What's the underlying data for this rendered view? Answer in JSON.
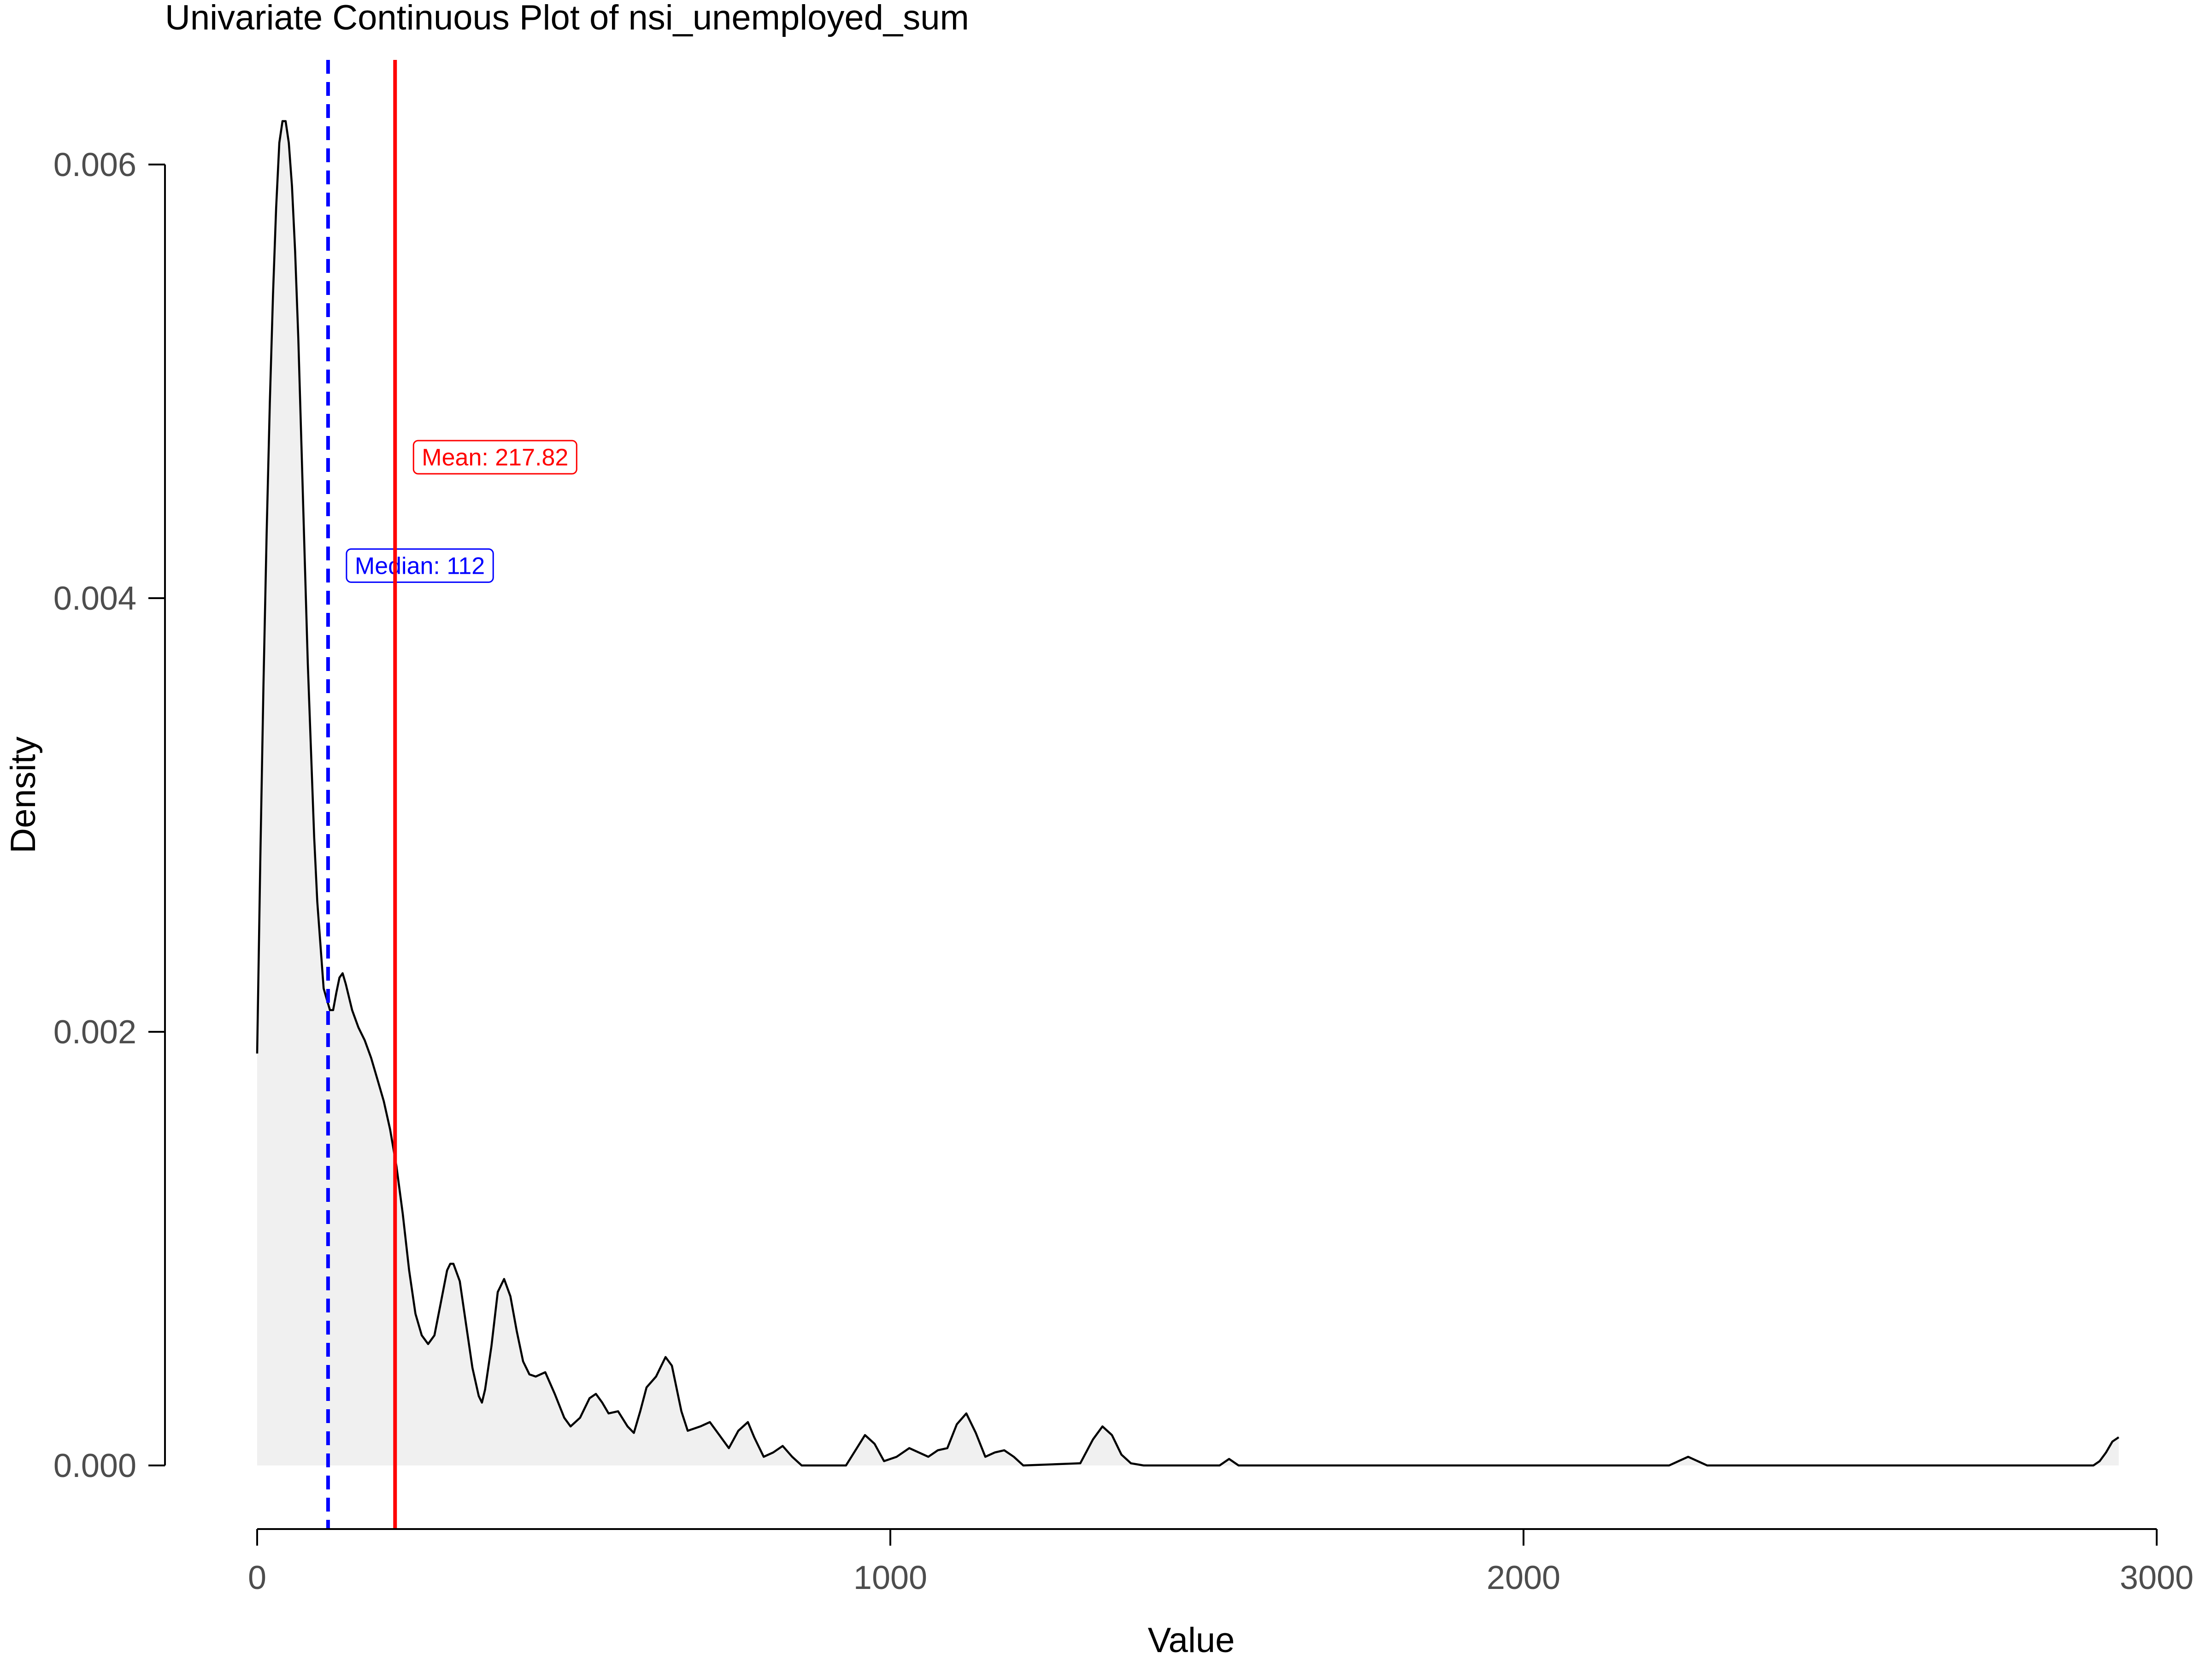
{
  "chart_data": {
    "type": "area",
    "title": "Univariate Continuous Plot of nsi_unemployed_sum",
    "xlabel": "Value",
    "ylabel": "Density",
    "xlim": [
      0,
      3000
    ],
    "ylim": [
      0,
      0.006
    ],
    "x_ticks": [
      0,
      1000,
      2000,
      3000
    ],
    "x_tick_labels": [
      "0",
      "1000",
      "2000",
      "3000"
    ],
    "y_ticks": [
      0,
      0.002,
      0.004,
      0.006
    ],
    "y_tick_labels": [
      "0.000",
      "0.002",
      "0.004",
      "0.006"
    ],
    "grid": false,
    "series": [
      {
        "values": [
          [
            0,
            0.0019
          ],
          [
            5,
            0.0028
          ],
          [
            10,
            0.0036
          ],
          [
            15,
            0.0043
          ],
          [
            20,
            0.0049
          ],
          [
            25,
            0.0054
          ],
          [
            30,
            0.0058
          ],
          [
            35,
            0.0061
          ],
          [
            40,
            0.0062
          ],
          [
            45,
            0.0062
          ],
          [
            50,
            0.0061
          ],
          [
            55,
            0.0059
          ],
          [
            60,
            0.0056
          ],
          [
            65,
            0.0052
          ],
          [
            70,
            0.0047
          ],
          [
            75,
            0.0042
          ],
          [
            80,
            0.0037
          ],
          [
            85,
            0.0033
          ],
          [
            90,
            0.0029
          ],
          [
            95,
            0.0026
          ],
          [
            100,
            0.0024
          ],
          [
            105,
            0.0022
          ],
          [
            110,
            0.00215
          ],
          [
            115,
            0.0021
          ],
          [
            120,
            0.0021
          ],
          [
            125,
            0.00218
          ],
          [
            130,
            0.00225
          ],
          [
            135,
            0.00227
          ],
          [
            140,
            0.00222
          ],
          [
            150,
            0.0021
          ],
          [
            160,
            0.00202
          ],
          [
            170,
            0.00196
          ],
          [
            180,
            0.00188
          ],
          [
            190,
            0.00178
          ],
          [
            200,
            0.00168
          ],
          [
            210,
            0.00155
          ],
          [
            220,
            0.00138
          ],
          [
            230,
            0.00116
          ],
          [
            240,
            0.0009
          ],
          [
            250,
            0.0007
          ],
          [
            260,
            0.0006
          ],
          [
            270,
            0.00056
          ],
          [
            280,
            0.0006
          ],
          [
            290,
            0.00075
          ],
          [
            300,
            0.0009
          ],
          [
            305,
            0.00093
          ],
          [
            310,
            0.00093
          ],
          [
            320,
            0.00085
          ],
          [
            330,
            0.00065
          ],
          [
            340,
            0.00045
          ],
          [
            350,
            0.00032
          ],
          [
            355,
            0.00029
          ],
          [
            360,
            0.00035
          ],
          [
            370,
            0.00055
          ],
          [
            380,
            0.0008
          ],
          [
            390,
            0.00086
          ],
          [
            400,
            0.00078
          ],
          [
            410,
            0.00062
          ],
          [
            420,
            0.00048
          ],
          [
            430,
            0.00042
          ],
          [
            440,
            0.00041
          ],
          [
            455,
            0.00043
          ],
          [
            470,
            0.00033
          ],
          [
            485,
            0.00022
          ],
          [
            495,
            0.00018
          ],
          [
            510,
            0.00022
          ],
          [
            525,
            0.00031
          ],
          [
            535,
            0.00033
          ],
          [
            545,
            0.00029
          ],
          [
            555,
            0.00024
          ],
          [
            570,
            0.00025
          ],
          [
            585,
            0.00018
          ],
          [
            595,
            0.00015
          ],
          [
            605,
            0.00025
          ],
          [
            615,
            0.00036
          ],
          [
            630,
            0.00041
          ],
          [
            645,
            0.0005
          ],
          [
            655,
            0.00046
          ],
          [
            670,
            0.00025
          ],
          [
            680,
            0.00016
          ],
          [
            700,
            0.00018
          ],
          [
            715,
            0.0002
          ],
          [
            730,
            0.00014
          ],
          [
            745,
            8e-05
          ],
          [
            760,
            0.00016
          ],
          [
            775,
            0.0002
          ],
          [
            785,
            0.00013
          ],
          [
            800,
            4e-05
          ],
          [
            815,
            6e-05
          ],
          [
            830,
            9e-05
          ],
          [
            845,
            4e-05
          ],
          [
            860,
            0.0
          ],
          [
            930,
            0.0
          ],
          [
            945,
            7e-05
          ],
          [
            960,
            0.00014
          ],
          [
            975,
            0.0001
          ],
          [
            990,
            2e-05
          ],
          [
            1010,
            4e-05
          ],
          [
            1030,
            8e-05
          ],
          [
            1045,
            6e-05
          ],
          [
            1060,
            4e-05
          ],
          [
            1075,
            7e-05
          ],
          [
            1090,
            8e-05
          ],
          [
            1105,
            0.00019
          ],
          [
            1120,
            0.00024
          ],
          [
            1135,
            0.00015
          ],
          [
            1150,
            4e-05
          ],
          [
            1165,
            6e-05
          ],
          [
            1180,
            7e-05
          ],
          [
            1195,
            4e-05
          ],
          [
            1210,
            0.0
          ],
          [
            1300,
            1e-05
          ],
          [
            1320,
            0.00012
          ],
          [
            1335,
            0.00018
          ],
          [
            1350,
            0.00014
          ],
          [
            1365,
            5e-05
          ],
          [
            1380,
            1e-05
          ],
          [
            1400,
            0.0
          ],
          [
            1520,
            0.0
          ],
          [
            1535,
            3e-05
          ],
          [
            1550,
            0.0
          ],
          [
            2230,
            0.0
          ],
          [
            2245,
            2e-05
          ],
          [
            2260,
            4e-05
          ],
          [
            2275,
            2e-05
          ],
          [
            2290,
            0.0
          ],
          [
            2900,
            0.0
          ],
          [
            2910,
            2e-05
          ],
          [
            2920,
            6e-05
          ],
          [
            2930,
            0.00011
          ],
          [
            2940,
            0.00013
          ]
        ]
      }
    ],
    "annotations": [
      {
        "name": "median",
        "label": "Median: 112",
        "x": 112,
        "color": "#0000ff",
        "line_style": "dashed",
        "label_y": 0.00415
      },
      {
        "name": "mean",
        "label": "Mean: 217.82",
        "x": 217.82,
        "color": "#ff0000",
        "line_style": "solid",
        "label_y": 0.00465
      }
    ],
    "colors": {
      "line": "#000000",
      "area_fill": "#f0f0f0"
    }
  }
}
